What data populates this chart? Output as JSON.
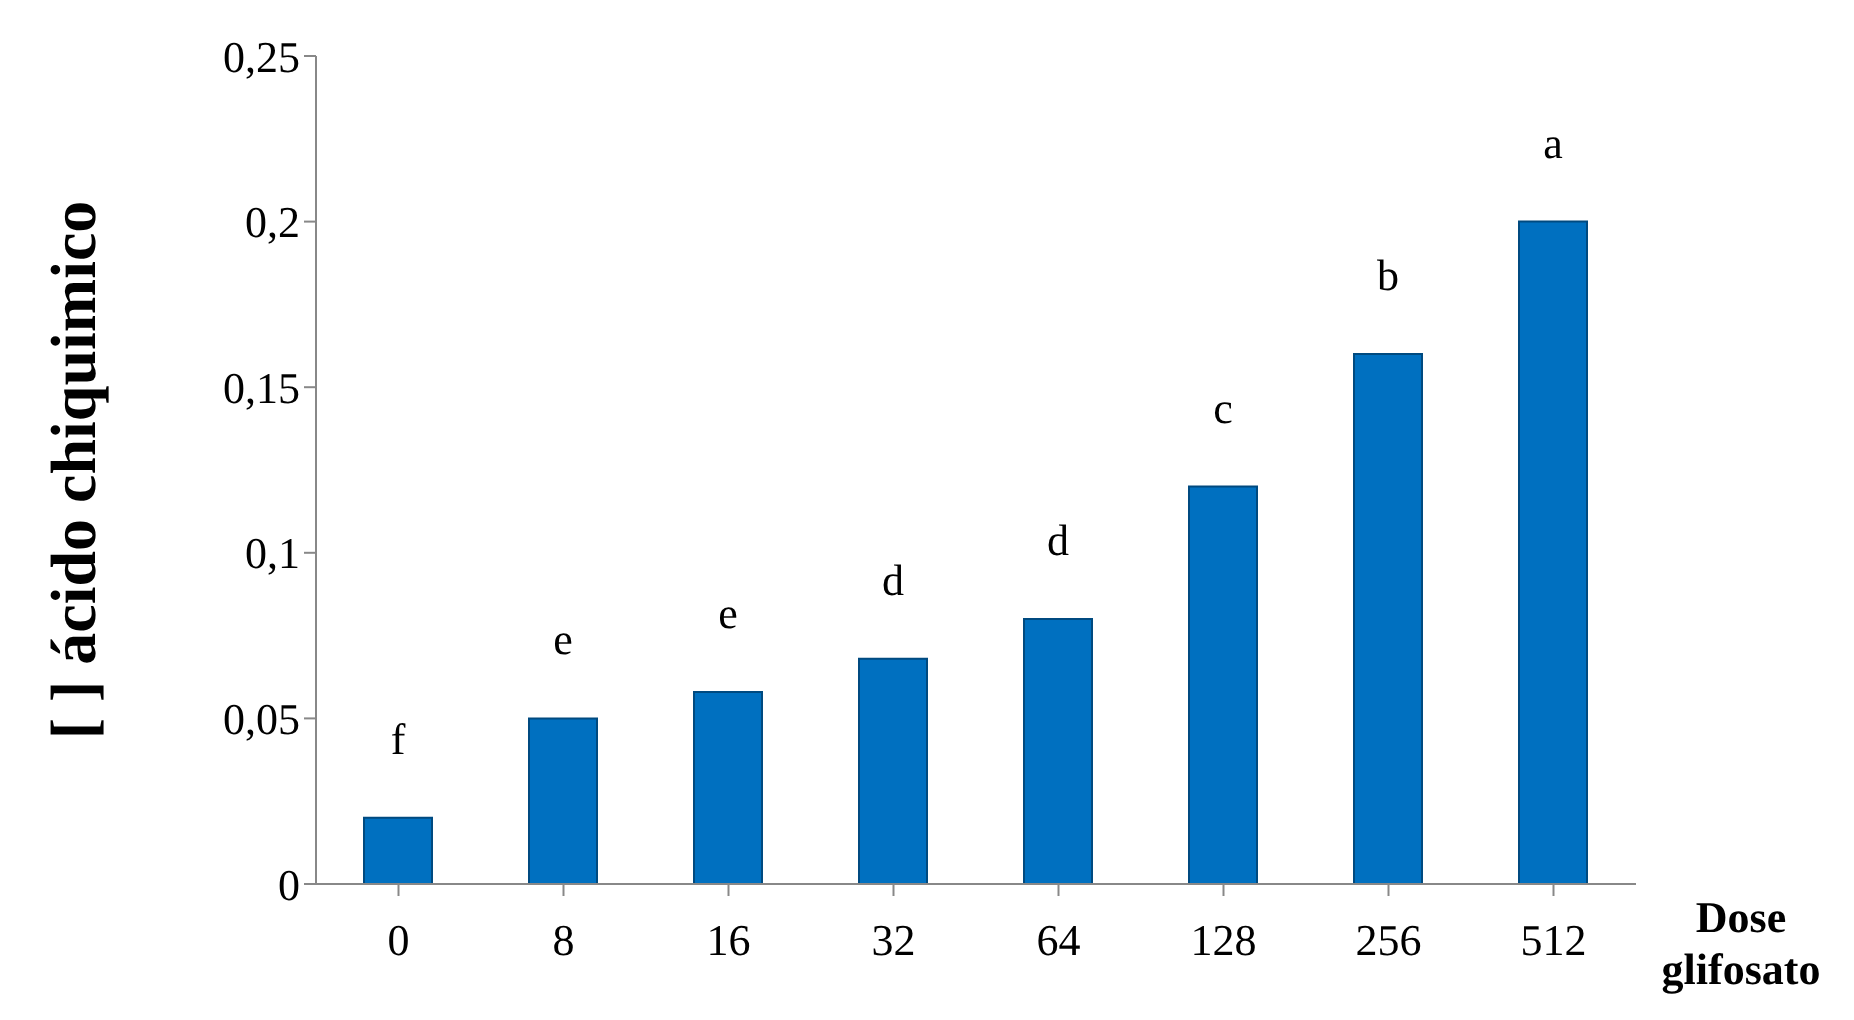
{
  "chart_data": {
    "type": "bar",
    "ylabel": "[ ] ácido chiquimico",
    "xlabel": "Dose glifosato",
    "categories": [
      "0",
      "8",
      "16",
      "32",
      "64",
      "128",
      "256",
      "512"
    ],
    "values": [
      0.02,
      0.05,
      0.058,
      0.068,
      0.08,
      0.12,
      0.16,
      0.2
    ],
    "color": "#0070c0",
    "ylim": [
      0,
      0.25
    ],
    "yticks": [
      0,
      {
        "value": 0.05,
        "label": "0,05"
      },
      {
        "value": 0.1,
        "label": "0,1"
      },
      {
        "value": 0.15,
        "label": "0,15"
      },
      {
        "value": 0.2,
        "label": "0,2"
      },
      {
        "value": 0.25,
        "label": "0,25"
      }
    ],
    "grid": false,
    "annotations": [
      "f",
      "e",
      "e",
      "d",
      "d",
      "c",
      "b",
      "a"
    ]
  }
}
